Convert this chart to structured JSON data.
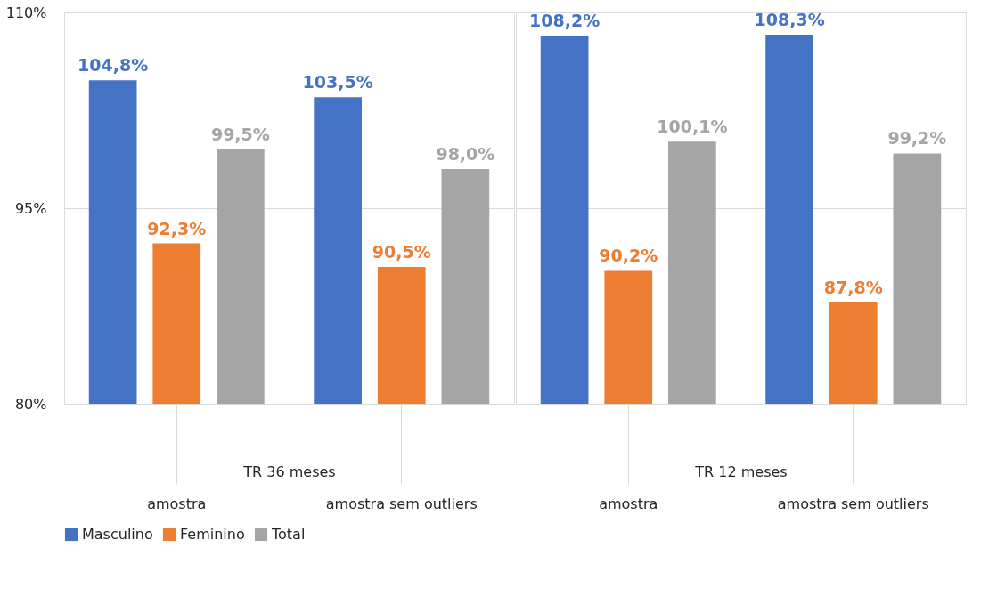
{
  "chart_data": {
    "type": "bar",
    "categories": [
      "amostra",
      "amostra sem outliers",
      "amostra",
      "amostra sem outliers"
    ],
    "annotations": [
      "TR 36 meses",
      "TR 12 meses"
    ],
    "series": [
      {
        "name": "Masculino",
        "color": "#4472c4",
        "values": [
          104.8,
          103.5,
          108.2,
          108.3
        ],
        "value_labels": [
          "104,8%",
          "103,5%",
          "108,2%",
          "108,3%"
        ]
      },
      {
        "name": "Feminino",
        "color": "#ed7d31",
        "values": [
          92.3,
          90.5,
          90.2,
          87.8
        ],
        "value_labels": [
          "92,3%",
          "90,5%",
          "90,2%",
          "87,8%"
        ]
      },
      {
        "name": "Total",
        "color": "#a5a5a5",
        "values": [
          99.5,
          98.0,
          100.1,
          99.2
        ],
        "value_labels": [
          "99,5%",
          "98,0%",
          "100,1%",
          "99,2%"
        ]
      }
    ],
    "ylim": [
      80,
      110
    ],
    "yticks": [
      {
        "value": 80,
        "label": "80%"
      },
      {
        "value": 95,
        "label": "95%"
      },
      {
        "value": 110,
        "label": "110%"
      }
    ],
    "grid": "y",
    "legend": "bottom"
  }
}
